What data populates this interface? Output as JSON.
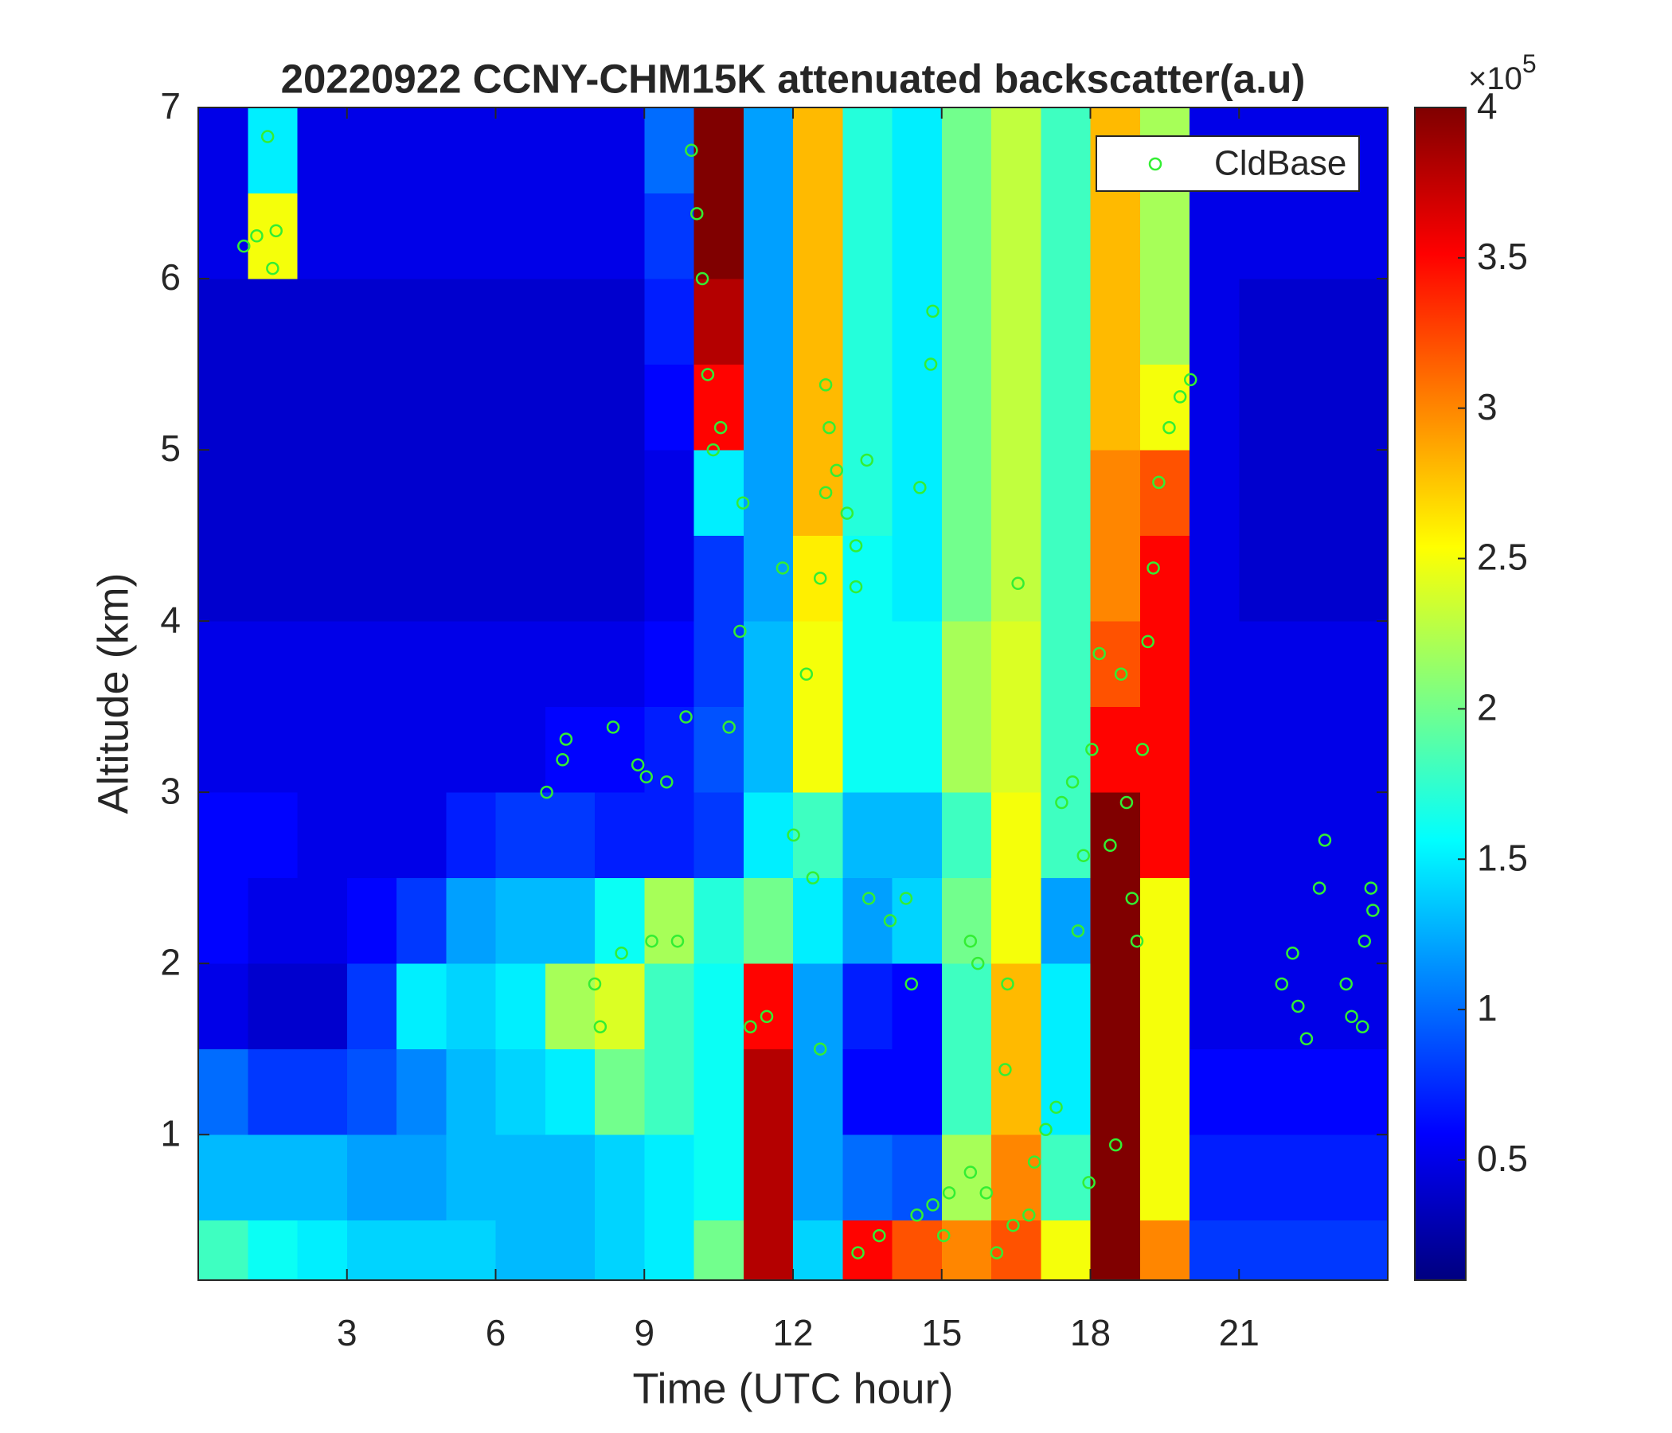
{
  "chart_data": {
    "type": "heatmap",
    "title": "20220922 CCNY-CHM15K attenuated backscatter(a.u)",
    "xlabel": "Time (UTC hour)",
    "ylabel": "Altitude (km)",
    "xlim": [
      0,
      24
    ],
    "ylim": [
      0.15,
      7
    ],
    "xticks": [
      3,
      6,
      9,
      12,
      15,
      18,
      21
    ],
    "yticks": [
      1,
      2,
      3,
      4,
      5,
      6,
      7
    ],
    "xbins": [
      0,
      1,
      2,
      3,
      4,
      5,
      6,
      7,
      8,
      9,
      10,
      11,
      12,
      13,
      14,
      15,
      16,
      17,
      18,
      19,
      20,
      21,
      22,
      23,
      24
    ],
    "ybins": [
      0.15,
      0.5,
      1,
      1.5,
      2,
      2.5,
      3,
      3.5,
      4,
      4.5,
      5,
      5.5,
      6,
      6.5,
      7
    ],
    "z": [
      [
        1.8,
        1.6,
        1.5,
        1.4,
        1.4,
        1.4,
        1.3,
        1.3,
        1.4,
        1.5,
        2.0,
        3.8,
        1.4,
        3.5,
        3.2,
        3.0,
        3.2,
        2.5,
        4.0,
        3.0,
        0.8,
        0.8,
        0.8,
        0.8
      ],
      [
        1.3,
        1.3,
        1.3,
        1.2,
        1.2,
        1.3,
        1.3,
        1.3,
        1.4,
        1.5,
        1.6,
        3.8,
        1.2,
        1.0,
        0.9,
        2.2,
        3.0,
        1.8,
        4.0,
        2.5,
        0.7,
        0.7,
        0.7,
        0.7
      ],
      [
        1.0,
        0.8,
        0.8,
        0.9,
        1.1,
        1.3,
        1.4,
        1.5,
        2.0,
        1.8,
        1.6,
        3.8,
        1.2,
        0.6,
        0.6,
        1.8,
        2.8,
        1.5,
        4.0,
        2.5,
        0.6,
        0.6,
        0.6,
        0.6
      ],
      [
        0.5,
        0.4,
        0.4,
        0.8,
        1.5,
        1.4,
        1.5,
        2.2,
        2.4,
        1.8,
        1.6,
        3.5,
        1.2,
        0.7,
        0.6,
        1.8,
        2.8,
        1.5,
        4.0,
        2.5,
        0.5,
        0.5,
        0.5,
        0.5
      ],
      [
        0.6,
        0.5,
        0.5,
        0.6,
        0.8,
        1.2,
        1.3,
        1.3,
        1.6,
        2.2,
        1.7,
        2.0,
        1.5,
        1.2,
        1.4,
        2.0,
        2.5,
        1.2,
        4.0,
        2.5,
        0.5,
        0.5,
        0.5,
        0.5
      ],
      [
        0.6,
        0.6,
        0.5,
        0.5,
        0.5,
        0.7,
        0.8,
        0.8,
        0.7,
        0.7,
        0.8,
        1.5,
        1.8,
        1.3,
        1.3,
        1.8,
        2.5,
        1.8,
        4.0,
        3.5,
        0.5,
        0.5,
        0.5,
        0.5
      ],
      [
        0.5,
        0.5,
        0.5,
        0.5,
        0.5,
        0.5,
        0.5,
        0.6,
        0.6,
        0.7,
        0.9,
        1.3,
        2.5,
        1.6,
        1.6,
        2.2,
        2.4,
        1.8,
        3.5,
        3.5,
        0.5,
        0.5,
        0.5,
        0.5
      ],
      [
        0.5,
        0.5,
        0.5,
        0.5,
        0.5,
        0.5,
        0.5,
        0.5,
        0.5,
        0.6,
        0.8,
        1.3,
        2.5,
        1.6,
        1.6,
        2.2,
        2.4,
        1.8,
        3.2,
        3.5,
        0.5,
        0.5,
        0.5,
        0.5
      ],
      [
        0.4,
        0.4,
        0.4,
        0.4,
        0.4,
        0.4,
        0.4,
        0.4,
        0.4,
        0.5,
        0.8,
        1.2,
        2.6,
        1.6,
        1.5,
        2.0,
        2.3,
        1.8,
        3.0,
        3.5,
        0.5,
        0.4,
        0.4,
        0.4
      ],
      [
        0.4,
        0.4,
        0.4,
        0.4,
        0.4,
        0.4,
        0.4,
        0.4,
        0.4,
        0.5,
        1.5,
        1.2,
        2.8,
        1.7,
        1.5,
        2.0,
        2.3,
        1.8,
        3.0,
        3.2,
        0.5,
        0.4,
        0.4,
        0.4
      ],
      [
        0.4,
        0.4,
        0.4,
        0.4,
        0.4,
        0.4,
        0.4,
        0.4,
        0.4,
        0.6,
        3.5,
        1.2,
        2.8,
        1.7,
        1.5,
        2.0,
        2.3,
        1.8,
        2.8,
        2.5,
        0.5,
        0.4,
        0.4,
        0.4
      ],
      [
        0.4,
        0.4,
        0.4,
        0.4,
        0.4,
        0.4,
        0.4,
        0.4,
        0.4,
        0.7,
        3.8,
        1.2,
        2.8,
        1.7,
        1.5,
        2.0,
        2.3,
        1.8,
        2.8,
        2.2,
        0.5,
        0.4,
        0.4,
        0.4
      ],
      [
        0.5,
        2.5,
        0.5,
        0.5,
        0.5,
        0.5,
        0.5,
        0.5,
        0.5,
        0.8,
        4.0,
        1.2,
        2.8,
        1.7,
        1.5,
        2.0,
        2.3,
        1.8,
        2.8,
        2.2,
        0.5,
        0.5,
        0.5,
        0.5
      ],
      [
        0.5,
        1.5,
        0.5,
        0.5,
        0.5,
        0.5,
        0.5,
        0.5,
        0.5,
        1.0,
        4.0,
        1.2,
        2.8,
        1.7,
        1.5,
        2.0,
        2.3,
        1.8,
        2.8,
        2.2,
        0.5,
        0.5,
        0.5,
        0.5
      ]
    ],
    "colormap": "jet",
    "clim": [
      0.1,
      4
    ],
    "cticks": [
      0.5,
      1,
      1.5,
      2,
      2.5,
      3,
      3.5,
      4
    ],
    "colorbar_multiplier": "×10",
    "colorbar_exponent": "5",
    "legend": "upper right",
    "series": [
      {
        "name": "CldBase",
        "type": "scatter",
        "color": "#33ee33",
        "x": [
          0.92,
          1.18,
          1.4,
          1.5,
          1.57,
          9.95,
          10.06,
          10.17,
          10.28,
          10.39,
          10.54,
          9.84,
          7.03,
          7.35,
          7.42,
          8.37,
          8.87,
          9.04,
          9.45,
          8.0,
          8.54,
          9.15,
          9.67,
          8.11,
          10.71,
          10.93,
          10.99,
          11.14,
          11.47,
          11.79,
          12.01,
          12.27,
          12.4,
          12.55,
          12.66,
          12.73,
          12.88,
          13.09,
          13.27,
          13.49,
          12.66,
          12.55,
          13.27,
          13.31,
          13.74,
          13.53,
          13.96,
          14.28,
          14.39,
          14.5,
          14.82,
          15.04,
          15.15,
          14.82,
          14.78,
          14.56,
          15.58,
          15.58,
          15.73,
          15.9,
          16.11,
          16.33,
          16.28,
          16.44,
          16.76,
          16.54,
          16.87,
          17.1,
          17.31,
          17.42,
          17.64,
          17.75,
          17.86,
          18.03,
          18.18,
          18.4,
          18.62,
          18.73,
          18.84,
          18.94,
          19.05,
          19.16,
          19.27,
          19.38,
          19.59,
          19.81,
          20.02,
          18.51,
          17.97,
          21.86,
          22.08,
          22.19,
          22.36,
          22.62,
          22.73,
          23.16,
          23.27,
          23.49,
          23.53,
          23.66,
          23.7
        ],
        "values": [
          6.19,
          6.25,
          6.83,
          6.06,
          6.28,
          6.75,
          6.38,
          6.0,
          5.44,
          5.0,
          5.13,
          3.44,
          3.0,
          3.19,
          3.31,
          3.38,
          3.16,
          3.09,
          3.06,
          1.88,
          2.06,
          2.13,
          2.13,
          1.63,
          3.38,
          3.94,
          4.69,
          1.63,
          1.69,
          4.31,
          2.75,
          3.69,
          2.5,
          1.5,
          5.38,
          5.13,
          4.88,
          4.63,
          4.44,
          4.94,
          4.75,
          4.25,
          4.2,
          0.31,
          0.41,
          2.38,
          2.25,
          2.38,
          1.88,
          0.53,
          0.59,
          0.41,
          0.66,
          5.81,
          5.5,
          4.78,
          0.78,
          2.13,
          2.0,
          0.66,
          0.31,
          1.88,
          1.38,
          0.47,
          0.53,
          4.22,
          0.84,
          1.03,
          1.16,
          2.94,
          3.06,
          2.19,
          2.63,
          3.25,
          3.81,
          2.69,
          3.69,
          2.94,
          2.38,
          2.13,
          3.25,
          3.88,
          4.31,
          4.81,
          5.13,
          5.31,
          5.41,
          0.94,
          0.72,
          1.88,
          2.06,
          1.75,
          1.56,
          2.44,
          2.72,
          1.88,
          1.69,
          1.63,
          2.13,
          2.44,
          2.31
        ]
      }
    ]
  }
}
